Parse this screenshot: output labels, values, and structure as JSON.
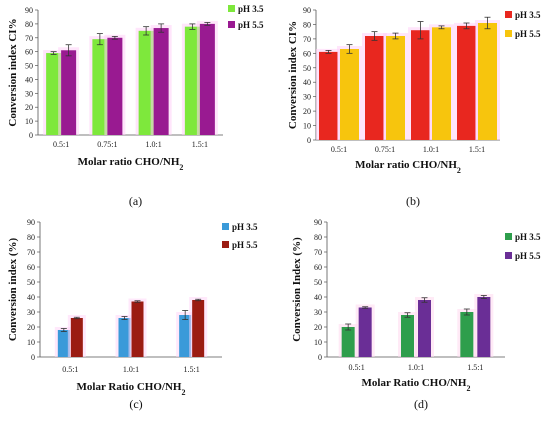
{
  "figure": {
    "panels": [
      "(a)",
      "(b)",
      "(c)",
      "(d)"
    ]
  },
  "chart_data": [
    {
      "type": "bar",
      "panel_label": "(a)",
      "title": "",
      "xlabel": "Molar ratio CHO/NH",
      "xlabel_sub": "2",
      "ylabel": "Conversion index CI%",
      "ylim": [
        0,
        90
      ],
      "ytick_step": 10,
      "categories": [
        "0.5:1",
        "0.75:1",
        "1.0:1",
        "1.5:1"
      ],
      "series": [
        {
          "name": "pH 3.5",
          "color": "#7ee83c",
          "values": [
            59,
            69,
            75,
            78
          ],
          "errors": [
            1,
            4,
            3,
            2
          ]
        },
        {
          "name": "pH 5.5",
          "color": "#991a91",
          "values": [
            61,
            70,
            77,
            80
          ],
          "errors": [
            4,
            1,
            3,
            1
          ]
        }
      ],
      "legend": "right"
    },
    {
      "type": "bar",
      "panel_label": "(b)",
      "title": "",
      "xlabel": "Molar ratio CHO/NH",
      "xlabel_sub": "2",
      "ylabel": "Conversion index CI%",
      "ylim": [
        0,
        90
      ],
      "ytick_step": 10,
      "categories": [
        "0.5:1",
        "0.75:1",
        "1.0:1",
        "1.5:1"
      ],
      "series": [
        {
          "name": "pH 3.5",
          "color": "#e8271f",
          "values": [
            61,
            72,
            76,
            79
          ],
          "errors": [
            1,
            3,
            6,
            2
          ]
        },
        {
          "name": "pH 5.5",
          "color": "#f7c50d",
          "values": [
            63,
            72,
            78,
            81
          ],
          "errors": [
            3,
            2,
            1,
            4
          ]
        }
      ],
      "legend": "right"
    },
    {
      "type": "bar",
      "panel_label": "(c)",
      "title": "",
      "xlabel": "Molar Ratio CHO/NH",
      "xlabel_sub": "2",
      "ylabel": "Conversion index (%)",
      "ylim": [
        0,
        90
      ],
      "ytick_step": 10,
      "categories": [
        "0.5:1",
        "1.0:1",
        "1.5:1"
      ],
      "series": [
        {
          "name": "pH 3.5",
          "color": "#3a9ad9",
          "values": [
            18,
            26,
            28
          ],
          "errors": [
            1,
            1,
            3
          ]
        },
        {
          "name": "pH 5.5",
          "color": "#9b1c12",
          "values": [
            26,
            37,
            38
          ],
          "errors": [
            0.5,
            0.5,
            0.5
          ]
        }
      ],
      "legend": "top-right"
    },
    {
      "type": "bar",
      "panel_label": "(d)",
      "title": "",
      "xlabel": "Molar Ratio CHO/NH",
      "xlabel_sub": "2",
      "ylabel": "Conversion Index (%)",
      "ylim": [
        0,
        90
      ],
      "ytick_step": 10,
      "categories": [
        "0.5:1",
        "1.0:1",
        "1.5:1"
      ],
      "series": [
        {
          "name": "pH 3.5",
          "color": "#2e9e4c",
          "values": [
            20,
            28,
            30
          ],
          "errors": [
            2,
            1.5,
            2
          ]
        },
        {
          "name": "pH 5.5",
          "color": "#6a2e96",
          "values": [
            33,
            38,
            40
          ],
          "errors": [
            0.5,
            1.5,
            1
          ]
        }
      ],
      "legend": "right"
    }
  ]
}
